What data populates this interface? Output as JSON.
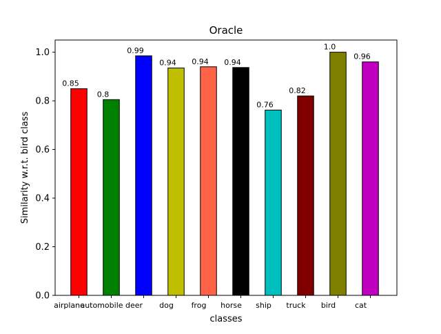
{
  "chart_data": {
    "type": "bar",
    "title": "Oracle",
    "xlabel": "classes",
    "ylabel": "Similarity w.r.t. bird class",
    "categories": [
      "airplane",
      "automobile",
      "deer",
      "dog",
      "frog",
      "horse",
      "ship",
      "truck",
      "bird",
      "cat"
    ],
    "values": [
      0.85,
      0.805,
      0.985,
      0.935,
      0.94,
      0.937,
      0.762,
      0.82,
      1.0,
      0.96
    ],
    "data_labels": [
      "0.85",
      "0.8",
      "0.99",
      "0.94",
      "0.94",
      "0.94",
      "0.76",
      "0.82",
      "1.0",
      "0.96"
    ],
    "colors": [
      "#ff0000",
      "#008000",
      "#0000ff",
      "#bfbf00",
      "#ff6347",
      "#000000",
      "#00bfbf",
      "#800000",
      "#808000",
      "#bf00bf"
    ],
    "bar_edge_color": "#000000",
    "ylim": [
      0.0,
      1.05
    ],
    "yticks": [
      "0.0",
      "0.2",
      "0.4",
      "0.6",
      "0.8",
      "1.0"
    ],
    "grid": false,
    "legend": "none"
  }
}
